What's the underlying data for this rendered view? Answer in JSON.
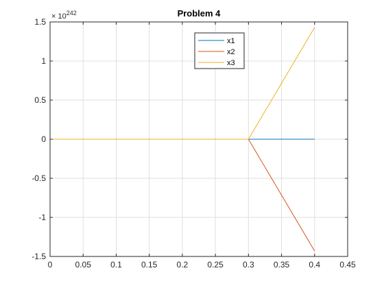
{
  "chart_data": {
    "type": "line",
    "title": "Problem 4",
    "xlabel": "",
    "ylabel": "",
    "exponent_base": "× 10",
    "exponent_power": "242",
    "xlim": [
      0,
      0.45
    ],
    "ylim": [
      -1.5,
      1.5
    ],
    "xticks": [
      0,
      0.05,
      0.1,
      0.15,
      0.2,
      0.25,
      0.3,
      0.35,
      0.4,
      0.45
    ],
    "xtick_labels": [
      "0",
      "0.05",
      "0.1",
      "0.15",
      "0.2",
      "0.25",
      "0.3",
      "0.35",
      "0.4",
      "0.45"
    ],
    "yticks": [
      -1.5,
      -1,
      -0.5,
      0,
      0.5,
      1,
      1.5
    ],
    "ytick_labels": [
      "-1.5",
      "-1",
      "-0.5",
      "0",
      "0.5",
      "1",
      "1.5"
    ],
    "grid": true,
    "legend_position": "top-center",
    "series": [
      {
        "name": "x1",
        "color": "#0072BD",
        "x": [
          0,
          0.1,
          0.2,
          0.3,
          0.4
        ],
        "y": [
          0,
          0,
          0,
          0,
          0
        ]
      },
      {
        "name": "x2",
        "color": "#D95319",
        "x": [
          0,
          0.1,
          0.2,
          0.3,
          0.4
        ],
        "y": [
          0,
          0,
          0,
          0,
          -1.43
        ]
      },
      {
        "name": "x3",
        "color": "#EDB120",
        "x": [
          0,
          0.1,
          0.2,
          0.3,
          0.4
        ],
        "y": [
          0,
          0,
          0,
          0,
          1.43
        ]
      }
    ]
  }
}
